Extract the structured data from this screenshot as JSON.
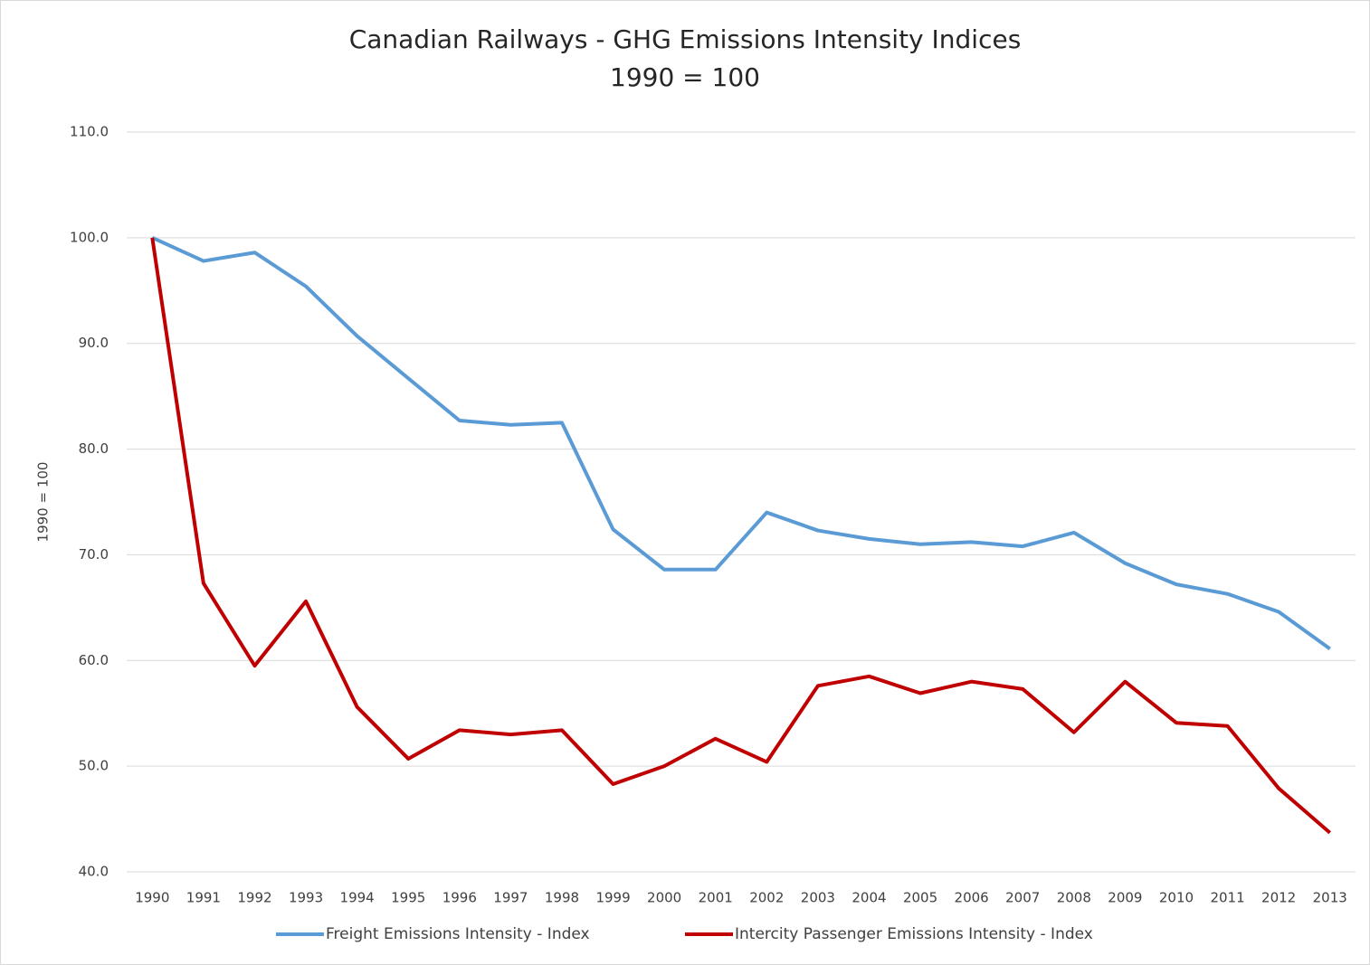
{
  "chart_data": {
    "type": "line",
    "title": "Canadian Railways - GHG Emissions Intensity Indices",
    "subtitle": "1990 = 100",
    "y_label": "1990 = 100",
    "categories": [
      "1990",
      "1991",
      "1992",
      "1993",
      "1994",
      "1995",
      "1996",
      "1997",
      "1998",
      "1999",
      "2000",
      "2001",
      "2002",
      "2003",
      "2004",
      "2005",
      "2006",
      "2007",
      "2008",
      "2009",
      "2010",
      "2011",
      "2012",
      "2013"
    ],
    "series": [
      {
        "name": "Freight Emissions Intensity - Index",
        "color": "#5b9bd5",
        "values": [
          100,
          97.8,
          98.6,
          95.4,
          90.7,
          86.7,
          82.7,
          82.3,
          82.5,
          72.4,
          68.6,
          68.6,
          74.0,
          72.3,
          71.5,
          71.0,
          71.2,
          70.8,
          72.1,
          69.2,
          67.2,
          66.3,
          64.6,
          61.1
        ]
      },
      {
        "name": "Intercity Passenger Emissions Intensity - Index",
        "color": "#c00000",
        "values": [
          100,
          67.3,
          59.5,
          65.6,
          55.6,
          50.7,
          53.4,
          53.0,
          53.4,
          48.3,
          50.0,
          52.6,
          50.4,
          57.6,
          58.5,
          56.9,
          58.0,
          57.3,
          53.2,
          58.0,
          54.1,
          53.8,
          47.9,
          43.7
        ]
      }
    ],
    "ylim": [
      40,
      110
    ],
    "yticks": [
      {
        "value": 40,
        "label": "40.0"
      },
      {
        "value": 50,
        "label": "50.0"
      },
      {
        "value": 60,
        "label": "60.0"
      },
      {
        "value": 70,
        "label": "70.0"
      },
      {
        "value": 80,
        "label": "80.0"
      },
      {
        "value": 90,
        "label": "90.0"
      },
      {
        "value": 100,
        "label": "100.0"
      },
      {
        "value": 110,
        "label": "110.0"
      }
    ],
    "grid": true,
    "legend": "bottom"
  }
}
